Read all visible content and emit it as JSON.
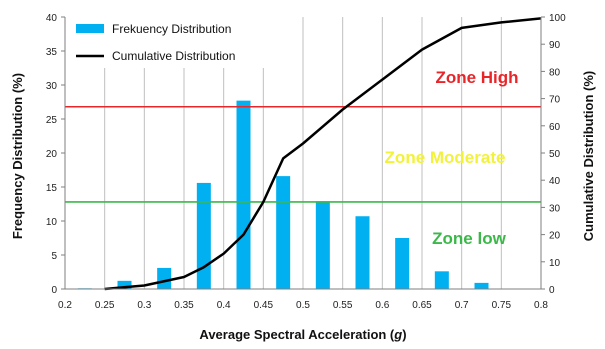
{
  "chart_data": {
    "type": "bar",
    "xlabel_prefix": "Average Spectral Acceleration (",
    "xlabel_unit": "g",
    "xlabel_suffix": ")",
    "ylabel_left": "Frequency Distribution (%)",
    "ylabel_right": "Cumulative Distribution (%)",
    "xlim": [
      0.2,
      0.8
    ],
    "ylim_left": [
      0,
      40
    ],
    "ylim_right": [
      0,
      100
    ],
    "x_ticks": [
      "0.2",
      "0.25",
      "0.3",
      "0.35",
      "0.4",
      "0.45",
      "0.5",
      "0.55",
      "0.6",
      "0.65",
      "0.7",
      "0.75",
      "0.8"
    ],
    "y_left_ticks": [
      "0",
      "5",
      "10",
      "15",
      "20",
      "25",
      "30",
      "35",
      "40"
    ],
    "y_right_ticks": [
      "0",
      "10",
      "20",
      "30",
      "40",
      "50",
      "60",
      "70",
      "80",
      "90",
      "100"
    ],
    "grid": "vertical",
    "legend_position": "top-left",
    "series": [
      {
        "name": "Frekuency Distribution",
        "kind": "bar",
        "axis": "left",
        "x": [
          0.225,
          0.275,
          0.325,
          0.375,
          0.425,
          0.475,
          0.525,
          0.575,
          0.625,
          0.675,
          0.725,
          0.775
        ],
        "values": [
          0.1,
          1.2,
          3.1,
          15.6,
          27.7,
          16.6,
          12.9,
          10.7,
          7.5,
          2.6,
          0.9,
          0
        ]
      },
      {
        "name": "Cumulative Distribution",
        "kind": "line",
        "axis": "right",
        "x": [
          0.25,
          0.3,
          0.35,
          0.375,
          0.4,
          0.425,
          0.45,
          0.475,
          0.5,
          0.55,
          0.6,
          0.65,
          0.7,
          0.75,
          0.8
        ],
        "values": [
          0,
          1.3,
          4.4,
          8,
          13,
          20,
          32,
          48,
          53.5,
          66,
          77,
          88,
          96,
          98,
          99.5
        ]
      }
    ],
    "zones": [
      {
        "label": "Zone High",
        "value_left": 26.8,
        "color": "#e8262a"
      },
      {
        "label": "Zone Moderate",
        "value_left": null,
        "color": "#f2f23a"
      },
      {
        "label": "Zone low",
        "value_left": 12.8,
        "color": "#3cb84a"
      }
    ],
    "colors": {
      "bar": "#00b0f0",
      "line": "#000000",
      "grid": "#bfbfbf",
      "axis": "#7f7f7f"
    }
  }
}
